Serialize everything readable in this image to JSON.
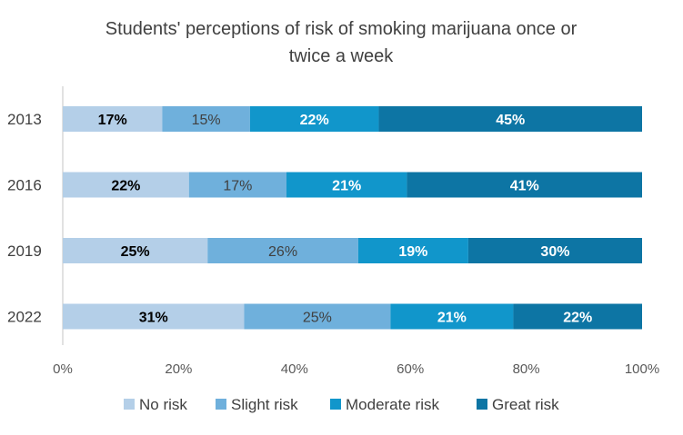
{
  "chart_data": {
    "type": "bar",
    "orientation": "horizontal",
    "stacked": "percent",
    "title_lines": [
      "Students' perceptions of risk of smoking marijuana once or",
      "twice a week"
    ],
    "categories": [
      "2013",
      "2016",
      "2019",
      "2022"
    ],
    "series": [
      {
        "name": "No risk",
        "color": "#b4cfe8",
        "values": [
          17,
          22,
          25,
          31
        ],
        "labels": [
          "17%",
          "22%",
          "25%",
          "31%"
        ],
        "label_color": "#000000",
        "label_bold": true
      },
      {
        "name": "Slight risk",
        "color": "#6fb0dc",
        "values": [
          15,
          17,
          26,
          25
        ],
        "labels": [
          "15%",
          "17%",
          "26%",
          "25%"
        ],
        "label_color": "#404040",
        "label_bold": false
      },
      {
        "name": "Moderate risk",
        "color": "#1196cb",
        "values": [
          22,
          21,
          19,
          21
        ],
        "labels": [
          "22%",
          "21%",
          "19%",
          "21%"
        ],
        "label_color": "#ffffff",
        "label_bold": true
      },
      {
        "name": "Great risk",
        "color": "#0d75a4",
        "values": [
          45,
          41,
          30,
          22
        ],
        "labels": [
          "45%",
          "41%",
          "30%",
          "22%"
        ],
        "label_color": "#ffffff",
        "label_bold": true
      }
    ],
    "x_ticks": [
      "0%",
      "20%",
      "40%",
      "60%",
      "80%",
      "100%"
    ],
    "xlim": [
      0,
      100
    ],
    "grid": false,
    "legend_position": "bottom"
  }
}
